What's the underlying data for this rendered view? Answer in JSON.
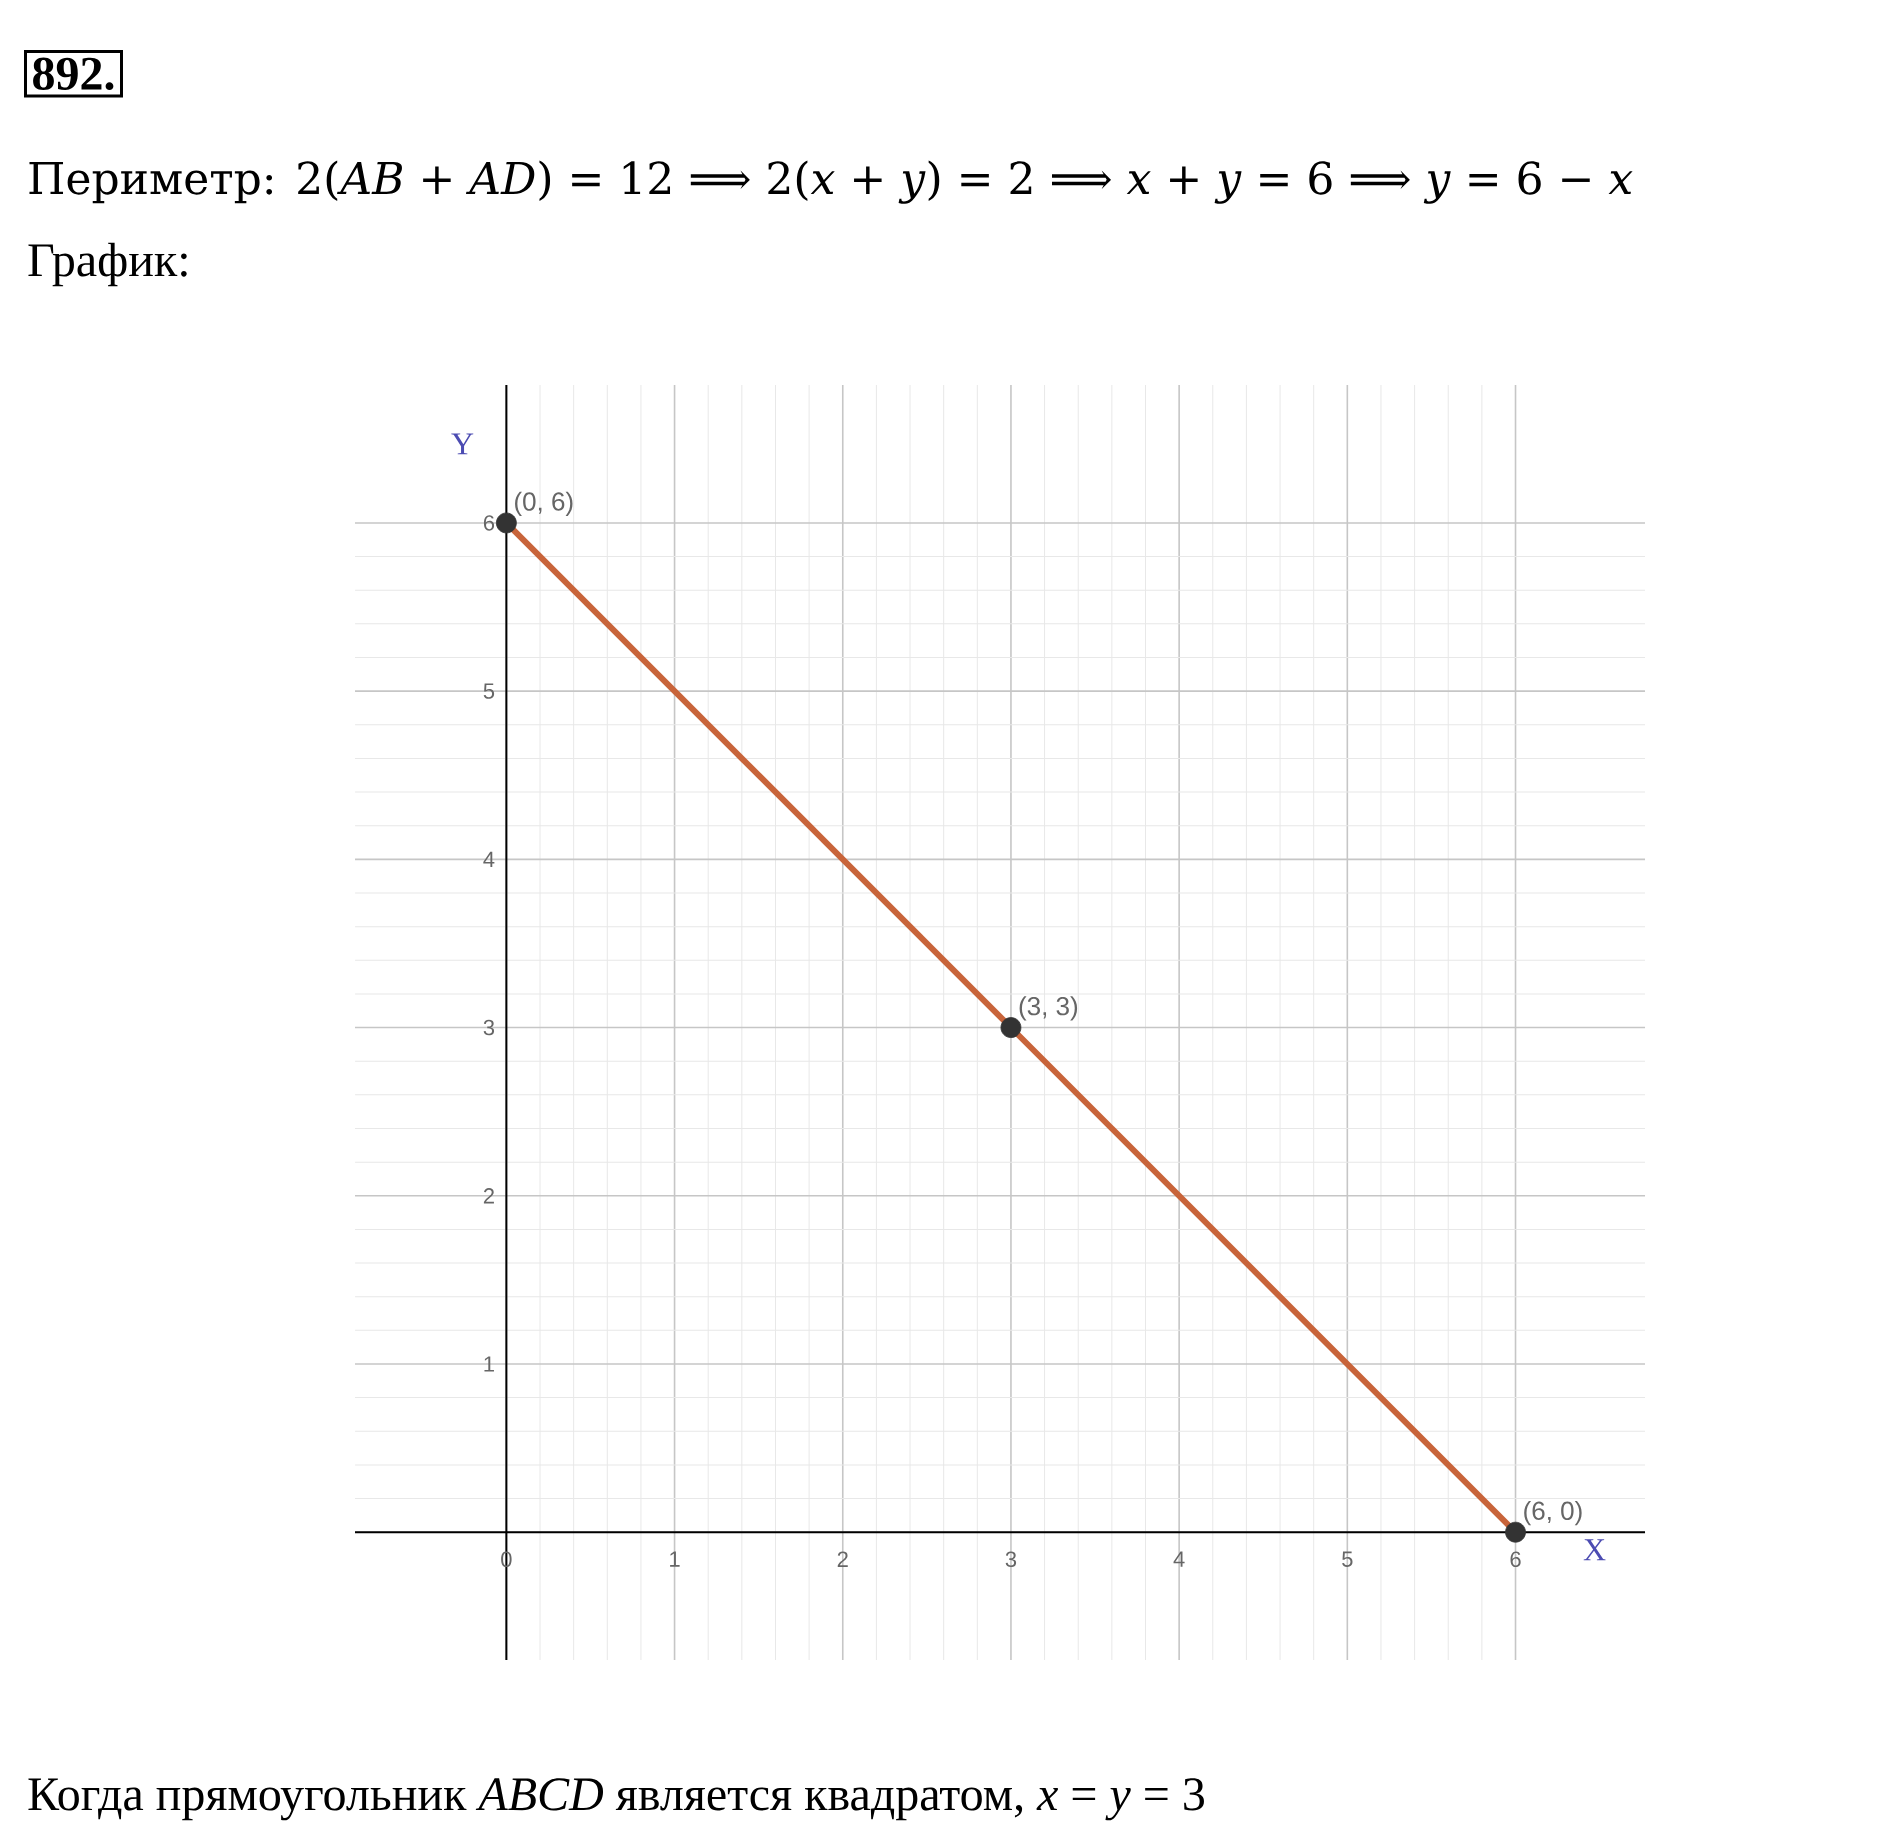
{
  "chart_data": {
    "type": "line",
    "title": "892.",
    "subtitle": "Периметр: 2(*AB* + *AD*) = 12 ⟹ 2(*x* + *y*) = 2 ⟹ *x* + *y* = 6 ⟹ *y* = 6 − *x*",
    "xlabel": "X",
    "ylabel": "Y",
    "x": [
      0,
      3,
      6
    ],
    "series": [
      {
        "type": "line",
        "color": "#c8643a",
        "values": [
          6,
          3,
          0
        ],
        "marker": "none"
      },
      {
        "type": "scatter",
        "color": "#333333",
        "values": [
          6,
          3,
          0
        ],
        "marker": "circle"
      }
    ],
    "annotations": [
      "График:",
      {
        "text": "(0, 6)",
        "x": 0,
        "y": 6
      },
      {
        "text": "(3, 3)",
        "x": 3,
        "y": 3
      },
      {
        "text": "(6, 0)",
        "x": 6,
        "y": 0
      },
      "Когда прямоугольник *ABCD* является квадратом, *x* = *y* = 3"
    ],
    "xlim": [
      -0.9,
      6.77
    ],
    "ylim": [
      -0.76,
      6.82
    ],
    "xticks": [
      0,
      1,
      2,
      3,
      4,
      5,
      6
    ],
    "yticks": [
      {
        "value": 0,
        "label": null
      },
      1,
      2,
      3,
      4,
      5,
      6
    ],
    "grid": true
  }
}
